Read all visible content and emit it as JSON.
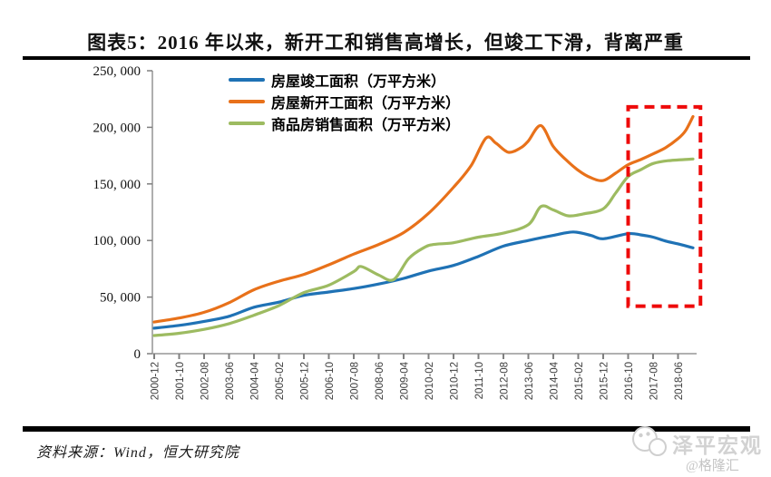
{
  "header": {
    "title": "图表5：2016 年以来，新开工和销售高增长，但竣工下滑，背离严重"
  },
  "chart_data": {
    "type": "line",
    "title": "图表5：2016 年以来，新开工和销售高增长，但竣工下滑，背离严重",
    "xlabel": "",
    "ylabel": "万平方米",
    "ylim": [
      0,
      250000
    ],
    "grid": false,
    "legend_position": "top-center",
    "x_unit": "months since 2000-12, ticks every 10 months",
    "x_tick_labels": [
      "2000-12",
      "2001-10",
      "2002-08",
      "2003-06",
      "2004-04",
      "2005-02",
      "2005-12",
      "2006-10",
      "2007-08",
      "2008-06",
      "2009-04",
      "2010-02",
      "2010-12",
      "2011-10",
      "2012-08",
      "2013-06",
      "2014-04",
      "2015-02",
      "2015-12",
      "2016-10",
      "2017-08",
      "2018-06"
    ],
    "y_ticks": [
      {
        "value": 0,
        "label": "0"
      },
      {
        "value": 50000,
        "label": "50, 000"
      },
      {
        "value": 100000,
        "label": "100, 000"
      },
      {
        "value": 150000,
        "label": "150, 000"
      },
      {
        "value": 200000,
        "label": "200, 000"
      },
      {
        "value": 250000,
        "label": "250, 000"
      }
    ],
    "series": [
      {
        "name": "房屋竣工面积（万平方米）",
        "color": "#1f72b5",
        "points": [
          [
            0,
            22500
          ],
          [
            10,
            25000
          ],
          [
            20,
            28500
          ],
          [
            30,
            33000
          ],
          [
            40,
            41000
          ],
          [
            50,
            45500
          ],
          [
            60,
            51500
          ],
          [
            70,
            54500
          ],
          [
            80,
            57500
          ],
          [
            90,
            61500
          ],
          [
            100,
            66500
          ],
          [
            110,
            73000
          ],
          [
            120,
            78000
          ],
          [
            130,
            86000
          ],
          [
            140,
            95000
          ],
          [
            150,
            100000
          ],
          [
            160,
            104500
          ],
          [
            168,
            107500
          ],
          [
            175,
            104500
          ],
          [
            180,
            101500
          ],
          [
            190,
            106000
          ],
          [
            195,
            105000
          ],
          [
            200,
            103000
          ],
          [
            205,
            99500
          ],
          [
            210,
            97000
          ],
          [
            216,
            93500
          ]
        ]
      },
      {
        "name": "房屋新开工面积（万平方米）",
        "color": "#e8711a",
        "points": [
          [
            0,
            28000
          ],
          [
            10,
            31500
          ],
          [
            20,
            36500
          ],
          [
            30,
            45000
          ],
          [
            40,
            56500
          ],
          [
            50,
            64000
          ],
          [
            60,
            70000
          ],
          [
            70,
            78500
          ],
          [
            80,
            88000
          ],
          [
            90,
            96500
          ],
          [
            100,
            107000
          ],
          [
            110,
            124000
          ],
          [
            120,
            147000
          ],
          [
            127,
            166000
          ],
          [
            133,
            190500
          ],
          [
            137,
            186000
          ],
          [
            142,
            178000
          ],
          [
            147,
            182000
          ],
          [
            150,
            188000
          ],
          [
            155,
            201500
          ],
          [
            160,
            183000
          ],
          [
            165,
            171500
          ],
          [
            170,
            162000
          ],
          [
            175,
            155500
          ],
          [
            180,
            153000
          ],
          [
            185,
            159500
          ],
          [
            190,
            167000
          ],
          [
            195,
            171500
          ],
          [
            200,
            176500
          ],
          [
            205,
            182000
          ],
          [
            210,
            190000
          ],
          [
            213,
            197000
          ],
          [
            216,
            209500
          ]
        ]
      },
      {
        "name": "商品房销售面积（万平方米）",
        "color": "#9dbb61",
        "points": [
          [
            0,
            16000
          ],
          [
            10,
            18000
          ],
          [
            20,
            21500
          ],
          [
            30,
            26500
          ],
          [
            40,
            34000
          ],
          [
            50,
            42500
          ],
          [
            60,
            54000
          ],
          [
            70,
            60500
          ],
          [
            80,
            72500
          ],
          [
            83,
            77000
          ],
          [
            90,
            69500
          ],
          [
            96,
            65500
          ],
          [
            102,
            84000
          ],
          [
            108,
            93500
          ],
          [
            112,
            96500
          ],
          [
            120,
            98000
          ],
          [
            130,
            103000
          ],
          [
            140,
            106500
          ],
          [
            150,
            114000
          ],
          [
            155,
            130000
          ],
          [
            160,
            127000
          ],
          [
            166,
            121800
          ],
          [
            172,
            123500
          ],
          [
            180,
            128000
          ],
          [
            185,
            142000
          ],
          [
            190,
            156500
          ],
          [
            195,
            162500
          ],
          [
            200,
            168000
          ],
          [
            206,
            170500
          ],
          [
            216,
            172000
          ]
        ]
      }
    ],
    "highlight_box": {
      "color": "#ee0a0a",
      "m_start": 190,
      "m_end": 219,
      "v_top": 218000,
      "v_bottom": 42000,
      "note": "red dashed box over 2016-10 onward"
    }
  },
  "footer": {
    "source": "资料来源：Wind，恒大研究院"
  },
  "watermark": {
    "brand": "泽平宏观",
    "handle": "@格隆汇"
  }
}
